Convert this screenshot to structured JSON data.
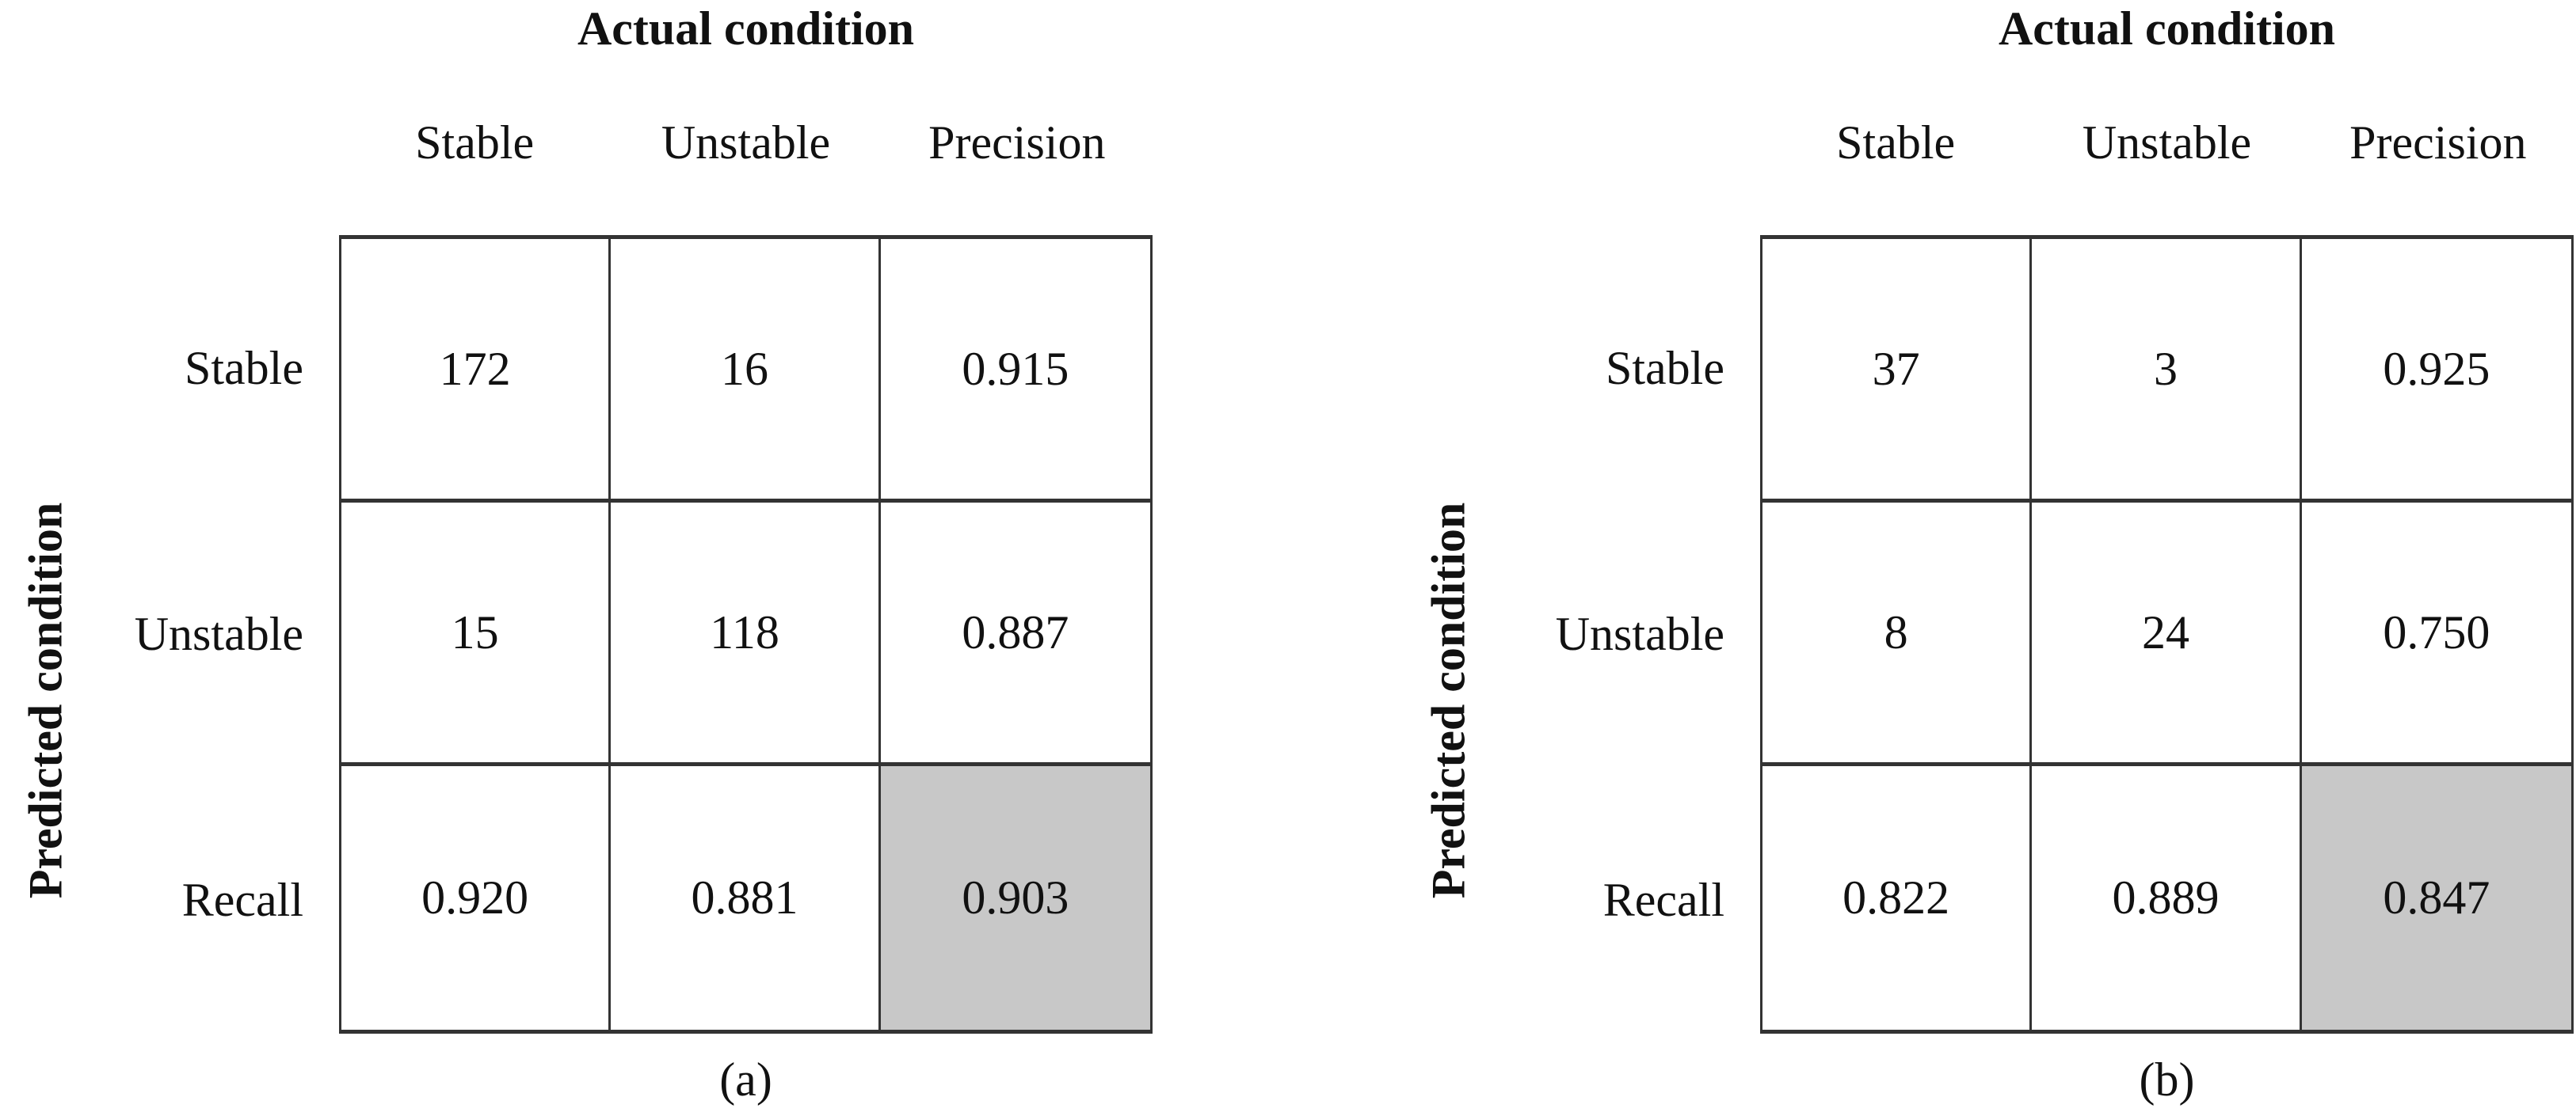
{
  "figure": {
    "description": "Two confusion matrices with precision and recall, panels (a) and (b)",
    "text_color": "#111111",
    "border_color": "#333333",
    "shaded_cell_color": "#c8c8c8"
  },
  "panels": [
    {
      "caption": "(a)",
      "column_axis_title": "Actual condition",
      "row_axis_title": "Predicted condition",
      "column_headers": [
        "Stable",
        "Unstable",
        "Precision"
      ],
      "row_headers": [
        "Stable",
        "Unstable",
        "Recall"
      ],
      "cells": [
        [
          "172",
          "16",
          "0.915"
        ],
        [
          "15",
          "118",
          "0.887"
        ],
        [
          "0.920",
          "0.881",
          "0.903"
        ]
      ]
    },
    {
      "caption": "(b)",
      "column_axis_title": "Actual condition",
      "row_axis_title": "Predicted condition",
      "column_headers": [
        "Stable",
        "Unstable",
        "Precision"
      ],
      "row_headers": [
        "Stable",
        "Unstable",
        "Recall"
      ],
      "cells": [
        [
          "37",
          "3",
          "0.925"
        ],
        [
          "8",
          "24",
          "0.750"
        ],
        [
          "0.822",
          "0.889",
          "0.847"
        ]
      ]
    }
  ],
  "chart_data": [
    {
      "type": "table",
      "panel_label": "(a)",
      "title": "Actual condition",
      "x_axis_title": "Actual condition",
      "y_axis_title": "Predicted condition",
      "columns": [
        "Stable",
        "Unstable",
        "Precision"
      ],
      "rows": [
        "Stable",
        "Unstable",
        "Recall"
      ],
      "values": [
        [
          172,
          16,
          0.915
        ],
        [
          15,
          118,
          0.887
        ],
        [
          0.92,
          0.881,
          0.903
        ]
      ],
      "highlighted_cell": {
        "row": "Recall",
        "column": "Precision",
        "value": 0.903,
        "fill": "#c8c8c8"
      },
      "grid": true,
      "legend": "none"
    },
    {
      "type": "table",
      "panel_label": "(b)",
      "title": "Actual condition",
      "x_axis_title": "Actual condition",
      "y_axis_title": "Predicted condition",
      "columns": [
        "Stable",
        "Unstable",
        "Precision"
      ],
      "rows": [
        "Stable",
        "Unstable",
        "Recall"
      ],
      "values": [
        [
          37,
          3,
          0.925
        ],
        [
          8,
          24,
          0.75
        ],
        [
          0.822,
          0.889,
          0.847
        ]
      ],
      "highlighted_cell": {
        "row": "Recall",
        "column": "Precision",
        "value": 0.847,
        "fill": "#c8c8c8"
      },
      "grid": true,
      "legend": "none"
    }
  ]
}
